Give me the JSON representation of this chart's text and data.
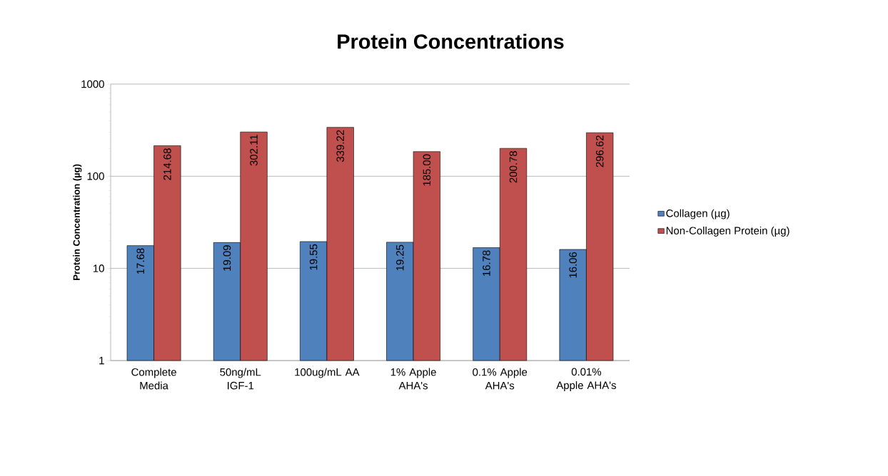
{
  "chart_data": {
    "type": "bar",
    "title": "Protein Concentrations",
    "ylabel": "Protein Concentration (µg)",
    "categories": [
      "Complete Media",
      "50ng/mL IGF-1",
      "100ug/mL AA",
      "1% Apple AHA's",
      "0.1% Apple AHA's",
      "0.01% Apple AHA's"
    ],
    "series": [
      {
        "name": "Collagen (µg)",
        "color": "#4f81bd",
        "values": [
          17.68,
          19.09,
          19.55,
          19.25,
          16.78,
          16.06
        ],
        "value_labels": [
          "17.68",
          "19.09",
          "19.55",
          "19.25",
          "16.78",
          "16.06"
        ]
      },
      {
        "name": "Non-Collagen Protein (µg)",
        "color": "#c0504d",
        "values": [
          214.68,
          302.11,
          339.22,
          185.0,
          200.78,
          296.62
        ],
        "value_labels": [
          "214.68",
          "302.11",
          "339.22",
          "185.00",
          "200.78",
          "296.62"
        ]
      }
    ],
    "log": true,
    "ylim": [
      1,
      1000
    ],
    "yticks": [
      1,
      10,
      100,
      1000
    ],
    "grid": "y",
    "legend": "right"
  }
}
